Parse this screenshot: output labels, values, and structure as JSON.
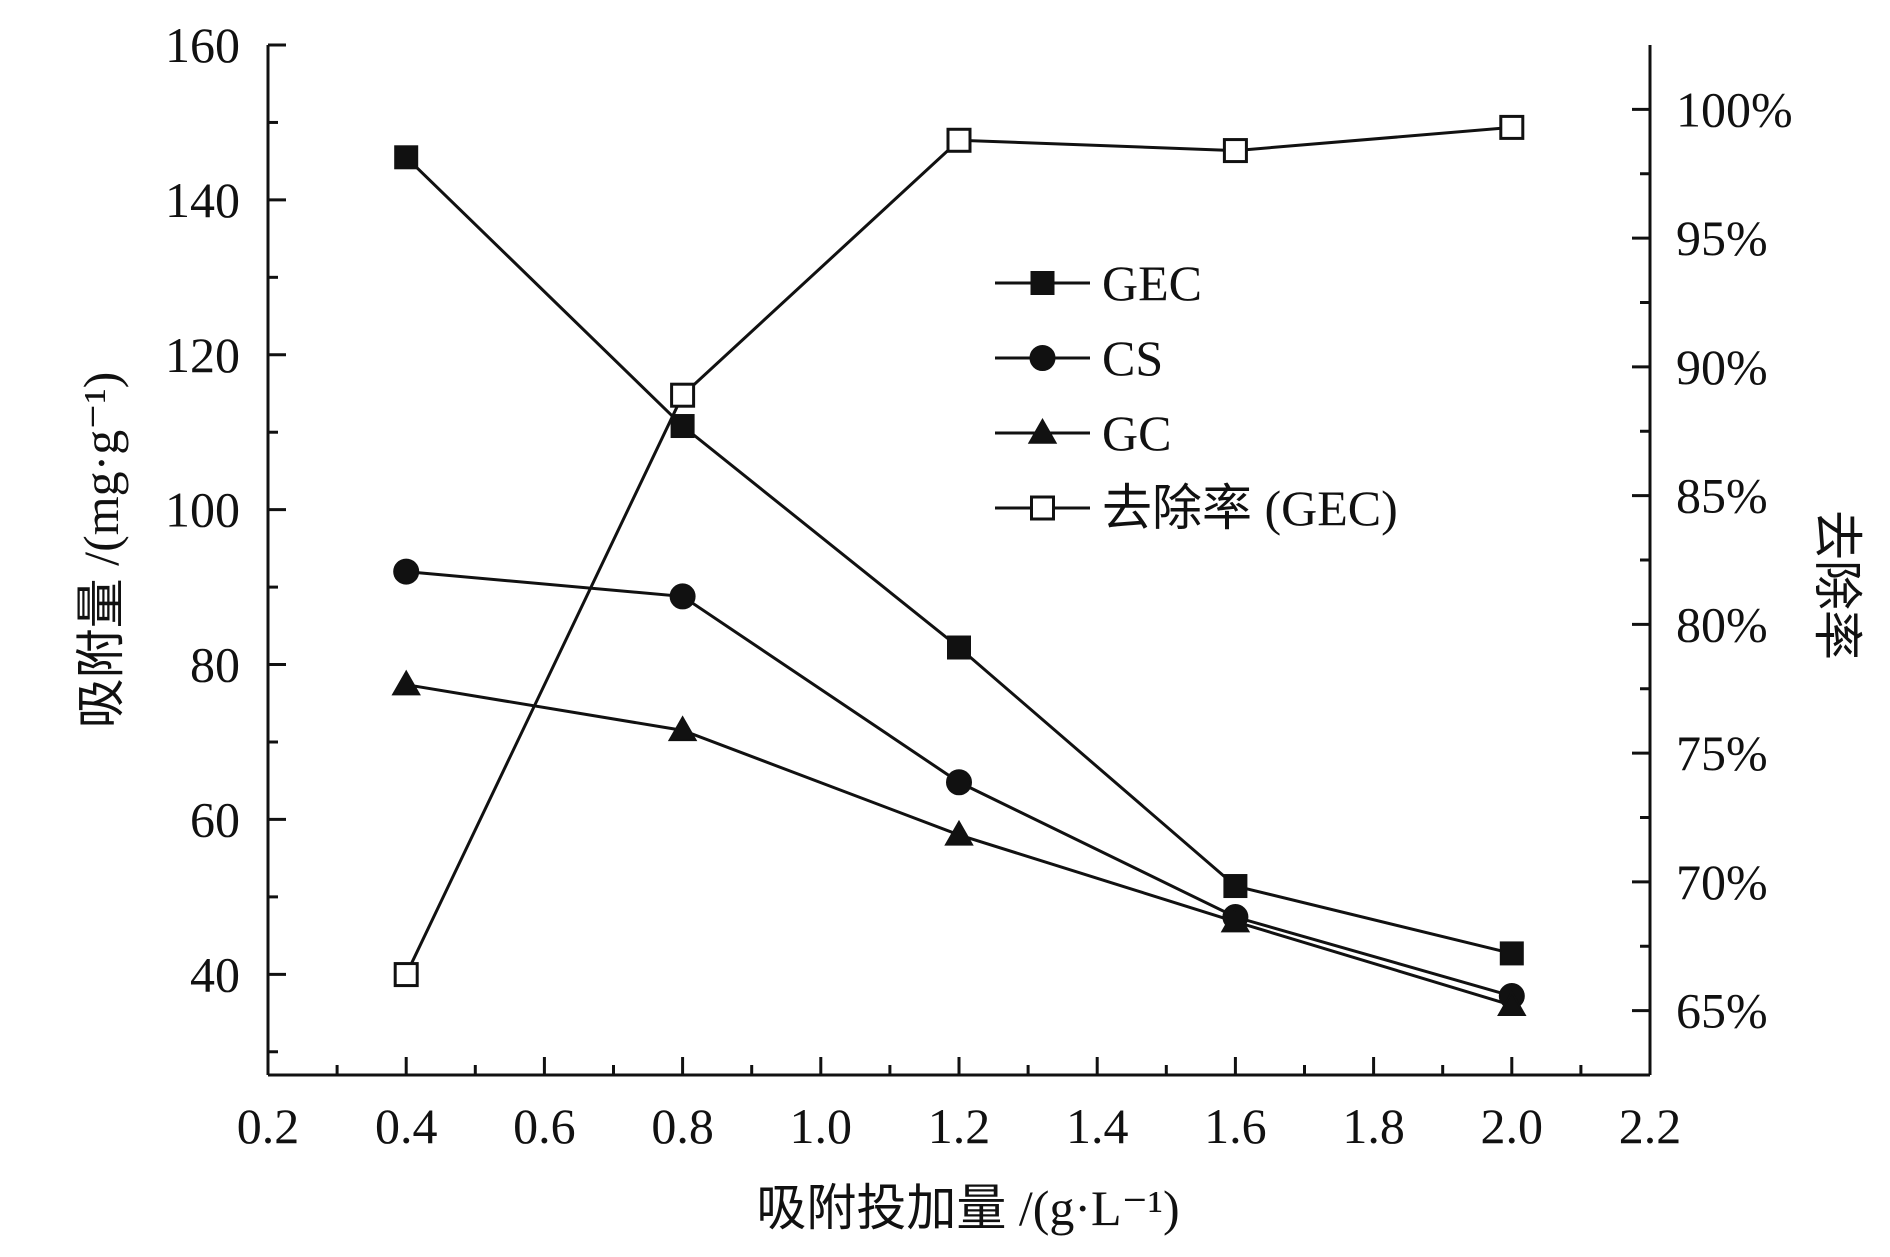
{
  "chart_data": {
    "type": "line",
    "xlabel": "吸附投加量 /(g·L⁻¹)",
    "ylabel_left": "吸附量 /(mg·g⁻¹)",
    "ylabel_right": "去除率",
    "xlim": [
      0.2,
      2.2
    ],
    "ylim_left": [
      27,
      160
    ],
    "ylim_right": [
      62.5,
      102.5
    ],
    "x_ticks": [
      "0.2",
      "0.4",
      "0.6",
      "0.8",
      "1.0",
      "1.2",
      "1.4",
      "1.6",
      "1.8",
      "2.0",
      "2.2"
    ],
    "y_left_ticks": [
      "40",
      "60",
      "80",
      "100",
      "120",
      "140",
      "160"
    ],
    "y_right_ticks": [
      "65%",
      "70%",
      "75%",
      "80%",
      "85%",
      "90%",
      "95%",
      "100%"
    ],
    "legend_position": "center",
    "grid": false,
    "series": [
      {
        "name": "GEC",
        "axis": "left",
        "marker": "filled-square",
        "x": [
          0.4,
          0.8,
          1.2,
          1.6,
          2.0
        ],
        "y": [
          145.5,
          110.8,
          82.2,
          51.4,
          42.7
        ]
      },
      {
        "name": "CS",
        "axis": "left",
        "marker": "filled-circle",
        "x": [
          0.4,
          0.8,
          1.2,
          1.6,
          2.0
        ],
        "y": [
          92.0,
          88.8,
          64.8,
          47.4,
          37.2
        ]
      },
      {
        "name": "GC",
        "axis": "left",
        "marker": "filled-triangle",
        "x": [
          0.4,
          0.8,
          1.2,
          1.6,
          2.0
        ],
        "y": [
          77.4,
          71.5,
          58.0,
          46.8,
          36.0
        ]
      },
      {
        "name": "去除率 (GEC)",
        "axis": "right",
        "marker": "open-square",
        "x": [
          0.4,
          0.8,
          1.2,
          1.6,
          2.0
        ],
        "y": [
          66.4,
          88.9,
          98.8,
          98.4,
          99.3
        ]
      }
    ]
  }
}
